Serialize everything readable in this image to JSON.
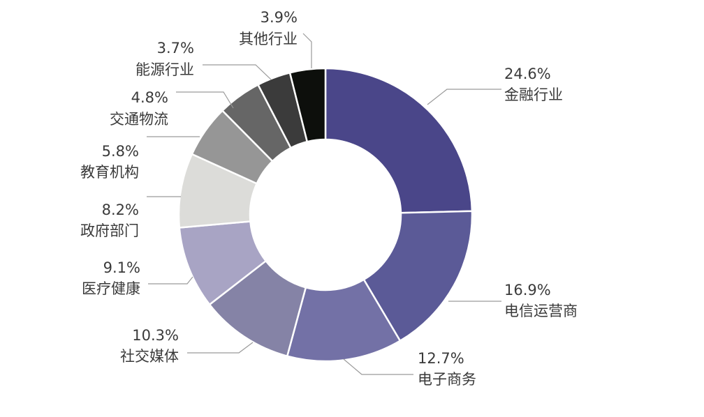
{
  "chart_data": {
    "type": "pie",
    "donut": true,
    "categories": [
      "金融行业",
      "电信运营商",
      "电子商务",
      "社交媒体",
      "医疗健康",
      "政府部门",
      "教育机构",
      "交通物流",
      "能源行业",
      "其他行业"
    ],
    "values": [
      24.6,
      16.9,
      12.7,
      10.3,
      9.1,
      8.2,
      5.8,
      4.8,
      3.7,
      3.9
    ],
    "value_labels": [
      "24.6%",
      "16.9%",
      "12.7%",
      "10.3%",
      "9.1%",
      "8.2%",
      "5.8%",
      "4.8%",
      "3.7%",
      "3.9%"
    ],
    "colors": [
      "#4a4689",
      "#5b5a97",
      "#7371a6",
      "#8583a6",
      "#a8a4c4",
      "#dcdcd9",
      "#969696",
      "#666666",
      "#3b3b3b",
      "#0d0f0c"
    ],
    "legend": "none"
  }
}
